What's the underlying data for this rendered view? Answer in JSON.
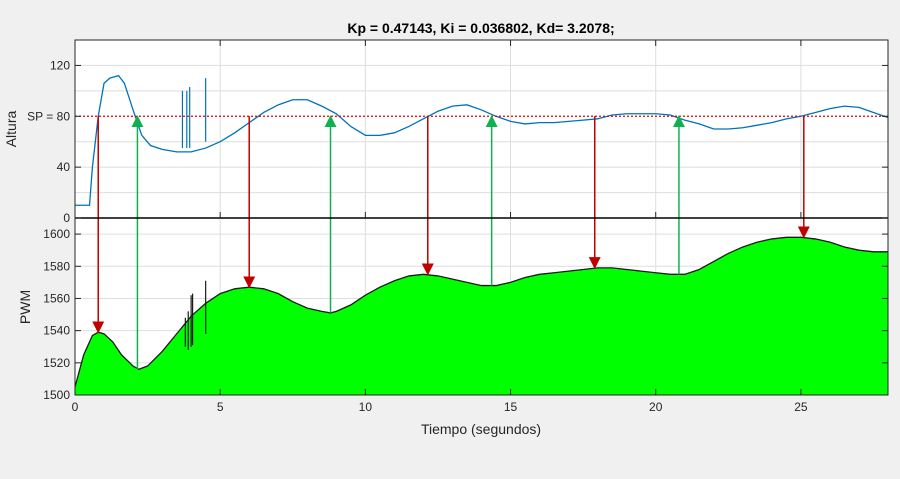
{
  "chart_data": [
    {
      "type": "line",
      "title": "Kp = 0.47143, Ki = 0.036802, Kd= 3.2078;",
      "ylabel": "Altura",
      "xlim": [
        0,
        28
      ],
      "ylim": [
        0,
        140
      ],
      "yticks": [
        0,
        40,
        80,
        120
      ],
      "ytick_labels": [
        "0",
        "40",
        "SP = 80",
        "120"
      ],
      "grid": true,
      "series": [
        {
          "name": "",
          "color": "#0072bd",
          "x": [
            0.0,
            0.5,
            0.6,
            0.8,
            1.0,
            1.2,
            1.5,
            1.7,
            2.0,
            2.3,
            2.6,
            3.0,
            3.5,
            4.0,
            4.5,
            5.0,
            5.5,
            6.0,
            6.5,
            7.0,
            7.5,
            8.0,
            8.5,
            9.0,
            9.5,
            10.0,
            10.5,
            11.0,
            11.5,
            12.0,
            12.5,
            13.0,
            13.5,
            14.0,
            14.5,
            15.0,
            15.5,
            16.0,
            16.5,
            17.0,
            17.5,
            18.0,
            18.5,
            19.0,
            19.5,
            20.0,
            20.5,
            21.0,
            21.5,
            22.0,
            22.5,
            23.0,
            23.5,
            24.0,
            24.5,
            25.0,
            25.5,
            26.0,
            26.5,
            27.0,
            27.5,
            28.0
          ],
          "y": [
            10,
            10,
            40,
            80,
            106,
            110,
            112,
            106,
            85,
            65,
            57,
            54,
            52,
            52,
            55,
            60,
            67,
            75,
            83,
            89,
            93,
            93,
            88,
            82,
            72,
            65,
            65,
            67,
            72,
            78,
            84,
            88,
            89,
            85,
            80,
            76,
            74,
            75,
            75,
            76,
            77,
            78,
            81,
            82,
            82,
            82,
            81,
            77,
            74,
            70,
            70,
            71,
            73,
            75,
            78,
            80,
            83,
            86,
            88,
            87,
            83,
            79
          ]
        },
        {
          "name": "",
          "color": "#e00000",
          "style": "dotted",
          "x": [
            0,
            28
          ],
          "y": [
            80,
            80
          ]
        }
      ]
    },
    {
      "type": "area",
      "xlabel": "Tiempo (segundos)",
      "ylabel": "PWM",
      "xlim": [
        0,
        28
      ],
      "ylim": [
        1500,
        1610
      ],
      "xticks": [
        0,
        5,
        10,
        15,
        20,
        25
      ],
      "yticks": [
        1500,
        1520,
        1540,
        1560,
        1580,
        1600
      ],
      "grid": true,
      "series": [
        {
          "name": "",
          "color": "#00ff00",
          "x": [
            0.0,
            0.3,
            0.6,
            0.8,
            1.0,
            1.3,
            1.6,
            2.0,
            2.2,
            2.5,
            3.0,
            3.5,
            4.0,
            4.5,
            5.0,
            5.5,
            6.0,
            6.5,
            7.0,
            7.5,
            8.0,
            8.5,
            8.8,
            9.0,
            9.5,
            10.0,
            10.5,
            11.0,
            11.5,
            12.0,
            12.5,
            13.0,
            13.5,
            14.0,
            14.3,
            14.5,
            15.0,
            15.5,
            16.0,
            16.5,
            17.0,
            17.5,
            18.0,
            18.5,
            19.0,
            19.5,
            20.0,
            20.5,
            20.8,
            21.0,
            21.5,
            22.0,
            22.5,
            23.0,
            23.5,
            24.0,
            24.5,
            25.0,
            25.5,
            26.0,
            26.5,
            27.0,
            27.5,
            28.0
          ],
          "y": [
            1505,
            1525,
            1537,
            1539,
            1538,
            1533,
            1525,
            1518,
            1516,
            1518,
            1527,
            1538,
            1549,
            1557,
            1563,
            1566,
            1567,
            1566,
            1563,
            1558,
            1554,
            1552,
            1551,
            1552,
            1556,
            1562,
            1567,
            1571,
            1574,
            1575,
            1574,
            1572,
            1570,
            1568,
            1568,
            1568,
            1570,
            1573,
            1575,
            1576,
            1577,
            1578,
            1579,
            1579,
            1578,
            1577,
            1576,
            1575,
            1575,
            1575,
            1578,
            1583,
            1588,
            1592,
            1595,
            1597,
            1598,
            1598,
            1597,
            1595,
            1592,
            1590,
            1589,
            1589
          ]
        }
      ],
      "spikes": [
        {
          "x": 3.8,
          "top": 1548,
          "bottom": 1530
        },
        {
          "x": 3.9,
          "top": 1552,
          "bottom": 1528
        },
        {
          "x": 4.0,
          "top": 1562,
          "bottom": 1530
        },
        {
          "x": 4.05,
          "top": 1563,
          "bottom": 1531
        },
        {
          "x": 4.5,
          "top": 1571,
          "bottom": 1538
        }
      ],
      "arrows": [
        {
          "x": 0.8,
          "from_altura": 80,
          "to_pwm": 1539,
          "color": "#c00000",
          "direction": "down"
        },
        {
          "x": 2.15,
          "from_pwm": 1516,
          "to_altura": 80,
          "color": "#10b050",
          "direction": "up"
        },
        {
          "x": 6.0,
          "from_altura": 80,
          "to_pwm": 1567,
          "color": "#c00000",
          "direction": "down"
        },
        {
          "x": 8.8,
          "from_pwm": 1551,
          "to_altura": 80,
          "color": "#10b050",
          "direction": "up"
        },
        {
          "x": 12.15,
          "from_altura": 80,
          "to_pwm": 1575,
          "color": "#c00000",
          "direction": "down"
        },
        {
          "x": 14.35,
          "from_pwm": 1568,
          "to_altura": 80,
          "color": "#10b050",
          "direction": "up"
        },
        {
          "x": 17.9,
          "from_altura": 80,
          "to_pwm": 1579,
          "color": "#c00000",
          "direction": "down"
        },
        {
          "x": 20.8,
          "from_pwm": 1575,
          "to_altura": 80,
          "color": "#10b050",
          "direction": "up"
        },
        {
          "x": 25.1,
          "from_altura": 80,
          "to_pwm": 1598,
          "color": "#c00000",
          "direction": "down"
        }
      ]
    }
  ]
}
